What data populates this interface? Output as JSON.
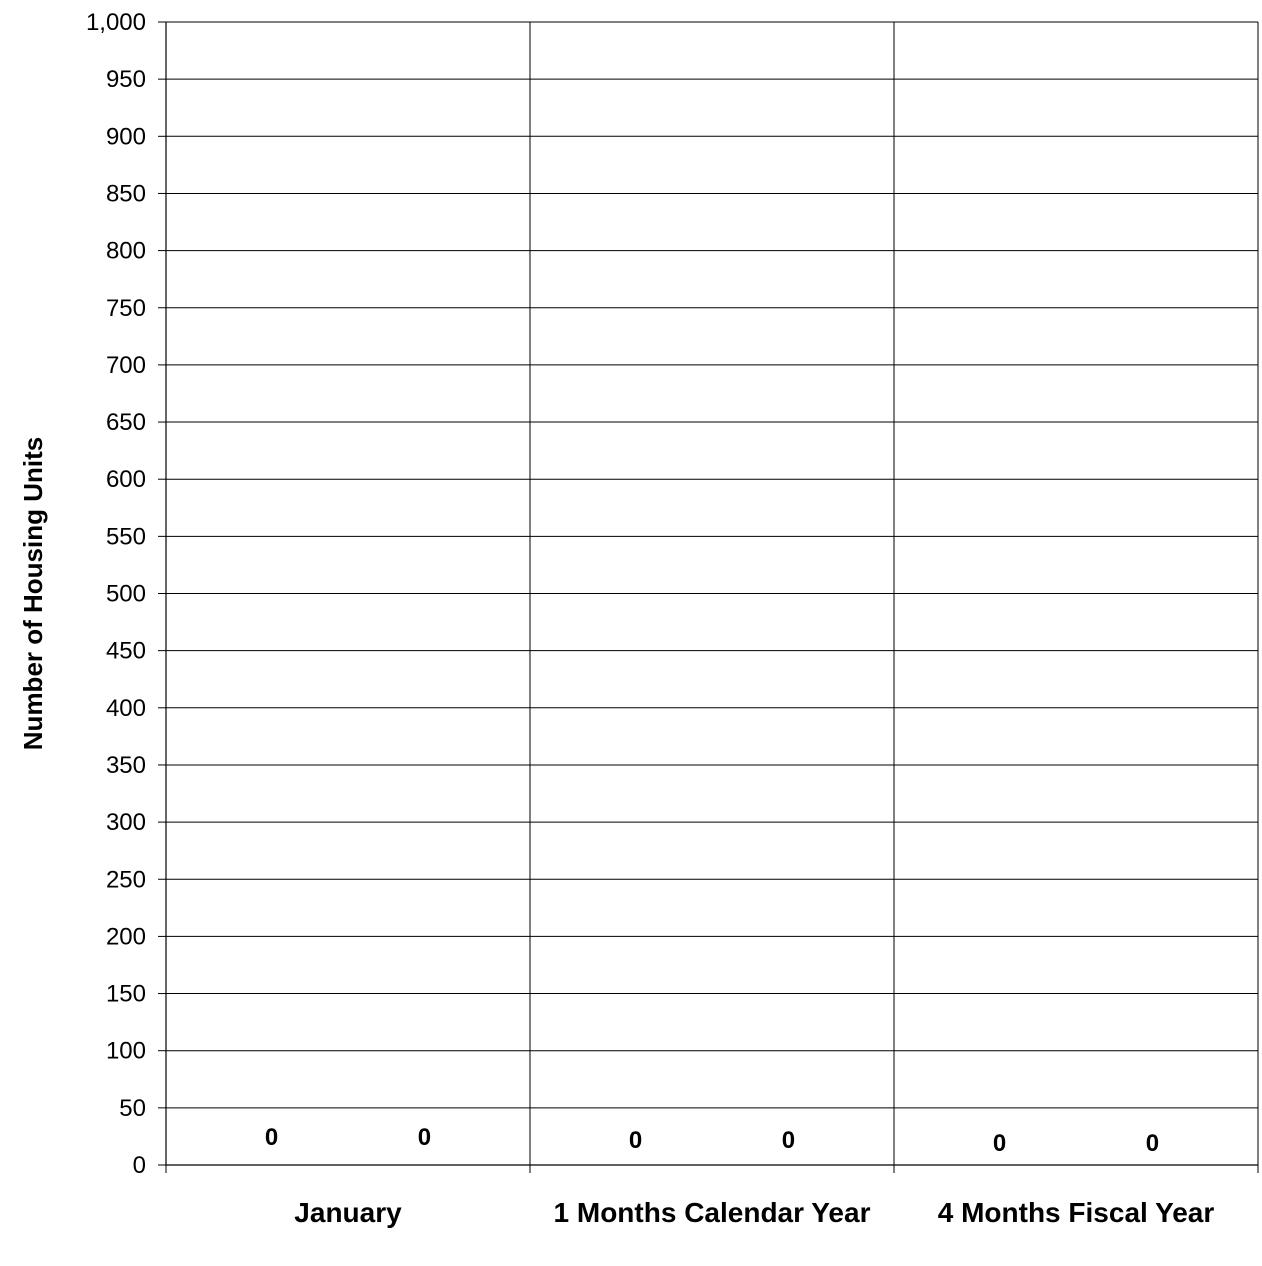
{
  "chart_data": {
    "type": "bar",
    "title": "",
    "xlabel": "",
    "ylabel": "Number of Housing Units",
    "ylim": [
      0,
      1000
    ],
    "ytick_step": 50,
    "categories": [
      "January",
      "1 Months Calendar Year",
      "4 Months Fiscal Year"
    ],
    "series": [
      {
        "values": [
          0,
          0,
          0
        ]
      },
      {
        "values": [
          0,
          0,
          0
        ]
      }
    ],
    "grid": true,
    "legend": "none"
  }
}
